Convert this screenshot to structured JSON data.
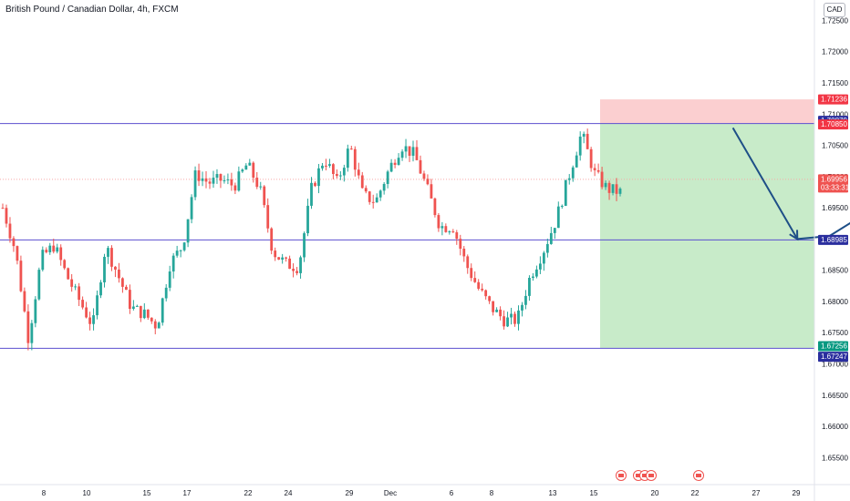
{
  "header": {
    "title": "British Pound / Canadian Dollar, 4h, FXCM",
    "currency": "CAD"
  },
  "colors": {
    "up": "#26a69a",
    "down": "#ef5350",
    "level": "#5b4fcf",
    "target": "#c8ebc9",
    "stop": "#fbcfd0",
    "arrow": "#1e4f87"
  },
  "chart_data": {
    "type": "candlestick",
    "ylim": [
      1.6525,
      1.7275
    ],
    "y_ticks": [
      "1.72500",
      "1.72000",
      "1.71500",
      "1.71000",
      "1.70500",
      "1.70000",
      "1.69500",
      "1.69000",
      "1.68500",
      "1.68000",
      "1.67500",
      "1.67000",
      "1.66500",
      "1.66000",
      "1.65500"
    ],
    "x_ticks": [
      "8",
      "10",
      "15",
      "17",
      "22",
      "24",
      "29",
      "Dec",
      "6",
      "8",
      "13",
      "15",
      "20",
      "22",
      "27",
      "29"
    ],
    "horizontal_levels": [
      1.7085,
      1.68985,
      1.6725
    ],
    "position": {
      "entry": 1.7085,
      "stop": 1.71236,
      "target": 1.67256
    },
    "price_labels": [
      {
        "value": 1.71236,
        "text": "1.71236",
        "kind": "stop"
      },
      {
        "value": 1.70879,
        "text": "1.70879",
        "kind": "level"
      },
      {
        "value": 1.7085,
        "text": "1.70850",
        "kind": "entry"
      },
      {
        "value": 1.69956,
        "text": "1.69956",
        "kind": "current",
        "sub": "03:33:31"
      },
      {
        "value": 1.68985,
        "text": "1.68985",
        "kind": "level"
      },
      {
        "value": 1.67256,
        "text": "1.67256",
        "kind": "target"
      },
      {
        "value": 1.67247,
        "text": "1.67247",
        "kind": "level"
      }
    ],
    "current_price": 1.69956,
    "projection": [
      {
        "day": 19.6,
        "price": 1.7078
      },
      {
        "day": 20.8,
        "price": 1.69
      },
      {
        "day": 21.4,
        "price": 1.6905
      },
      {
        "day": 22.9,
        "price": 1.6985
      }
    ],
    "x_day_domain": [
      6.0,
      30.3
    ],
    "candle_domain": [
      6.0,
      17.5
    ],
    "anchors": [
      1.695,
      1.688,
      1.674,
      1.687,
      1.689,
      1.684,
      1.68,
      1.676,
      1.689,
      1.684,
      1.679,
      1.678,
      1.676,
      1.686,
      1.689,
      1.7005,
      1.699,
      1.6995,
      1.6985,
      1.702,
      1.698,
      1.688,
      1.686,
      1.6855,
      1.698,
      1.703,
      1.699,
      1.705,
      1.697,
      1.696,
      1.701,
      1.705,
      1.7035,
      1.698,
      1.692,
      1.692,
      1.686,
      1.682,
      1.679,
      1.677,
      1.677,
      1.684,
      1.688,
      1.693,
      1.7,
      1.707,
      1.7005,
      1.698,
      1.6975
    ],
    "red_markers": [
      {
        "day": 18.9
      },
      {
        "day": 19.6
      },
      {
        "day": 20.1
      },
      {
        "day": 20.6
      },
      {
        "day": 22.7
      }
    ]
  }
}
